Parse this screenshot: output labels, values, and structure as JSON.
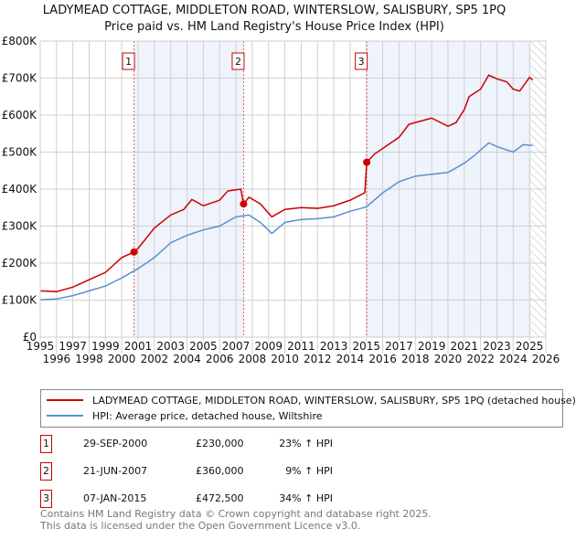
{
  "title": "LADYMEAD COTTAGE, MIDDLETON ROAD, WINTERSLOW, SALISBURY, SP5 1PQ",
  "subtitle": "Price paid vs. HM Land Registry's House Price Index (HPI)",
  "colors": {
    "property": "#cc0000",
    "hpi": "#5b8fd0",
    "shade": "#eef3fc"
  },
  "legend": {
    "property": "LADYMEAD COTTAGE, MIDDLETON ROAD, WINTERSLOW, SALISBURY, SP5 1PQ (detached house)",
    "hpi": "HPI: Average price, detached house, Wiltshire"
  },
  "sales": [
    {
      "n": "1",
      "date": "29-SEP-2000",
      "price": "£230,000",
      "hpi": "23% ↑ HPI",
      "x": 2000.75,
      "y": 230000
    },
    {
      "n": "2",
      "date": "21-JUN-2007",
      "price": "£360,000",
      "hpi": "9% ↑ HPI",
      "x": 2007.47,
      "y": 360000
    },
    {
      "n": "3",
      "date": "07-JAN-2015",
      "price": "£472,500",
      "hpi": "34% ↑ HPI",
      "x": 2015.02,
      "y": 472500
    }
  ],
  "footer": {
    "line1": "Contains HM Land Registry data © Crown copyright and database right 2025.",
    "line2": "This data is licensed under the Open Government Licence v3.0."
  },
  "chart_data": {
    "type": "line",
    "xlim": [
      1995,
      2026
    ],
    "ylim": [
      0,
      800000
    ],
    "xticks": [
      "1995",
      "1996",
      "1997",
      "1998",
      "1999",
      "2000",
      "2001",
      "2002",
      "2003",
      "2004",
      "2005",
      "2006",
      "2007",
      "2008",
      "2009",
      "2010",
      "2011",
      "2012",
      "2013",
      "2014",
      "2015",
      "2016",
      "2017",
      "2018",
      "2019",
      "2020",
      "2021",
      "2022",
      "2023",
      "2024",
      "2025",
      "2026"
    ],
    "yticks": [
      {
        "v": 0,
        "label": "£0"
      },
      {
        "v": 100000,
        "label": "£100K"
      },
      {
        "v": 200000,
        "label": "£200K"
      },
      {
        "v": 300000,
        "label": "£300K"
      },
      {
        "v": 400000,
        "label": "£400K"
      },
      {
        "v": 500000,
        "label": "£500K"
      },
      {
        "v": 600000,
        "label": "£600K"
      },
      {
        "v": 700000,
        "label": "£700K"
      },
      {
        "v": 800000,
        "label": "£800K"
      }
    ],
    "grid": true,
    "forecast_from": 2025.1,
    "series": [
      {
        "name": "property",
        "points": [
          [
            1995,
            125000
          ],
          [
            1996,
            123000
          ],
          [
            1997,
            135000
          ],
          [
            1998,
            155000
          ],
          [
            1999,
            175000
          ],
          [
            2000,
            215000
          ],
          [
            2000.75,
            230000
          ],
          [
            2001,
            240000
          ],
          [
            2002,
            295000
          ],
          [
            2003,
            330000
          ],
          [
            2003.8,
            345000
          ],
          [
            2004.3,
            372000
          ],
          [
            2005,
            355000
          ],
          [
            2006,
            370000
          ],
          [
            2006.5,
            395000
          ],
          [
            2007.3,
            400000
          ],
          [
            2007.47,
            360000
          ],
          [
            2007.8,
            378000
          ],
          [
            2008.5,
            360000
          ],
          [
            2009.2,
            325000
          ],
          [
            2010,
            345000
          ],
          [
            2011,
            350000
          ],
          [
            2012,
            348000
          ],
          [
            2013,
            355000
          ],
          [
            2014,
            370000
          ],
          [
            2014.9,
            390000
          ],
          [
            2015.02,
            472500
          ],
          [
            2015.5,
            495000
          ],
          [
            2016,
            510000
          ],
          [
            2017,
            540000
          ],
          [
            2017.6,
            575000
          ],
          [
            2018,
            580000
          ],
          [
            2019,
            592000
          ],
          [
            2020,
            570000
          ],
          [
            2020.5,
            580000
          ],
          [
            2021,
            615000
          ],
          [
            2021.3,
            650000
          ],
          [
            2022,
            670000
          ],
          [
            2022.5,
            708000
          ],
          [
            2023,
            698000
          ],
          [
            2023.6,
            690000
          ],
          [
            2024,
            670000
          ],
          [
            2024.4,
            665000
          ],
          [
            2025,
            702000
          ],
          [
            2025.2,
            695000
          ]
        ]
      },
      {
        "name": "hpi",
        "points": [
          [
            1995,
            101000
          ],
          [
            1996,
            103000
          ],
          [
            1997,
            112000
          ],
          [
            1998,
            125000
          ],
          [
            1999,
            138000
          ],
          [
            2000,
            160000
          ],
          [
            2001,
            185000
          ],
          [
            2002,
            215000
          ],
          [
            2003,
            255000
          ],
          [
            2004,
            275000
          ],
          [
            2005,
            290000
          ],
          [
            2006,
            300000
          ],
          [
            2007,
            325000
          ],
          [
            2007.8,
            330000
          ],
          [
            2008.5,
            310000
          ],
          [
            2009.2,
            280000
          ],
          [
            2010,
            310000
          ],
          [
            2011,
            318000
          ],
          [
            2012,
            320000
          ],
          [
            2013,
            325000
          ],
          [
            2014,
            340000
          ],
          [
            2015,
            352000
          ],
          [
            2016,
            390000
          ],
          [
            2017,
            420000
          ],
          [
            2018,
            435000
          ],
          [
            2019,
            440000
          ],
          [
            2020,
            445000
          ],
          [
            2021,
            470000
          ],
          [
            2021.6,
            490000
          ],
          [
            2022.5,
            525000
          ],
          [
            2023,
            515000
          ],
          [
            2024,
            500000
          ],
          [
            2024.6,
            520000
          ],
          [
            2025.2,
            518000
          ]
        ]
      }
    ]
  }
}
